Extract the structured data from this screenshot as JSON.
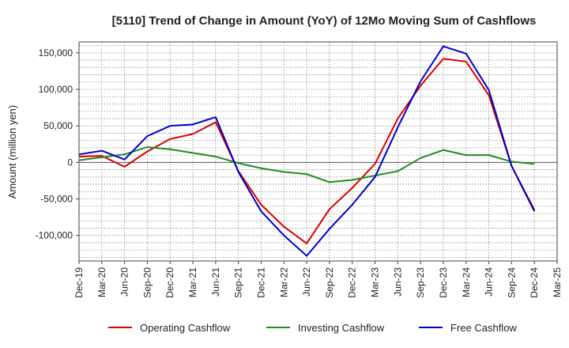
{
  "chart_data": {
    "type": "line",
    "title": "[5110]  Trend of Change in Amount (YoY) of 12Mo Moving Sum of Cashflows",
    "xlabel": "",
    "ylabel": "Amount (million yen)",
    "ylim": [
      -135000,
      165000
    ],
    "yticks": [
      -100000,
      -50000,
      0,
      50000,
      100000,
      150000
    ],
    "ytick_labels": [
      "-100,000",
      "-50,000",
      "0",
      "50,000",
      "100,000",
      "150,000"
    ],
    "grid": true,
    "legend_position": "bottom",
    "categories": [
      "Dec-19",
      "Mar-20",
      "Jun-20",
      "Sep-20",
      "Dec-20",
      "Mar-21",
      "Jun-21",
      "Sep-21",
      "Dec-21",
      "Mar-22",
      "Jun-22",
      "Sep-22",
      "Dec-22",
      "Mar-23",
      "Jun-23",
      "Sep-23",
      "Dec-23",
      "Mar-24",
      "Jun-24",
      "Sep-24",
      "Dec-24",
      "Mar-25"
    ],
    "series": [
      {
        "name": "Operating Cashflow",
        "color": "#dd0000",
        "values": [
          8000,
          9000,
          -6000,
          15000,
          32000,
          39000,
          55000,
          -12000,
          -58000,
          -88000,
          -111000,
          -64000,
          -35000,
          -2000,
          60000,
          105000,
          142000,
          138000,
          92000,
          -5000,
          -65000,
          null
        ]
      },
      {
        "name": "Investing Cashflow",
        "color": "#228b22",
        "values": [
          3000,
          7000,
          11000,
          21000,
          18000,
          13000,
          8000,
          -1000,
          -8000,
          -13000,
          -16000,
          -27000,
          -24000,
          -18000,
          -12000,
          6000,
          17000,
          10000,
          10000,
          1000,
          -2000,
          null
        ]
      },
      {
        "name": "Free Cashflow",
        "color": "#0000cc",
        "values": [
          11000,
          16000,
          4000,
          36000,
          50000,
          52000,
          62000,
          -13000,
          -67000,
          -100000,
          -128000,
          -91000,
          -58000,
          -20000,
          48000,
          111000,
          159000,
          149000,
          99000,
          -5000,
          -67000,
          null
        ]
      }
    ]
  }
}
